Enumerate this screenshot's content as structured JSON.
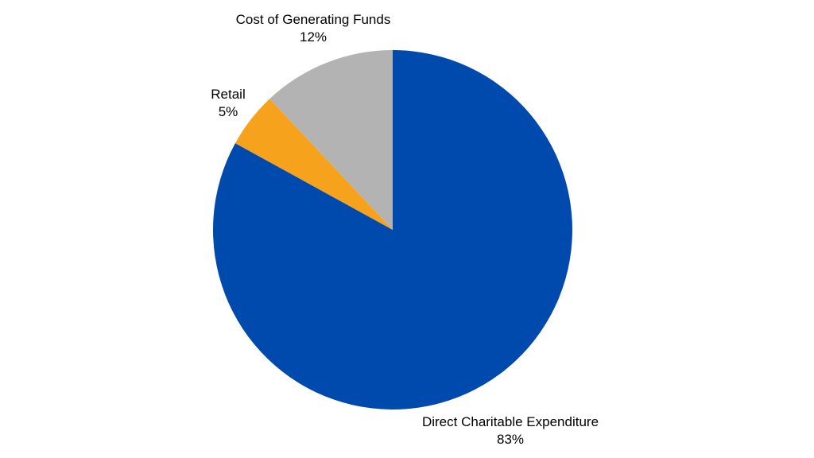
{
  "chart_data": {
    "type": "pie",
    "title": "",
    "slices": [
      {
        "label": "Direct Charitable Expenditure",
        "value": 83,
        "percent_label": "83%",
        "color": "#004aad"
      },
      {
        "label": "Retail",
        "value": 5,
        "percent_label": "5%",
        "color": "#f7a21d"
      },
      {
        "label": "Cost of Generating Funds",
        "value": 12,
        "percent_label": "12%",
        "color": "#b3b3b3"
      }
    ],
    "start_angle": "12 o'clock",
    "direction": "clockwise",
    "legend": "none"
  }
}
